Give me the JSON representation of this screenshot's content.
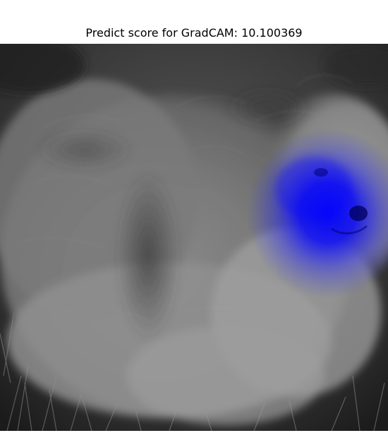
{
  "figure": {
    "title": "Predict score for GradCAM: 10.100369",
    "image_subject": "grayscale photo of a fluffy dog with GradCAM heatmap overlay",
    "heatmap_colormap_color": "#0000ff",
    "heatmap_peak_intensity": 1.0
  }
}
